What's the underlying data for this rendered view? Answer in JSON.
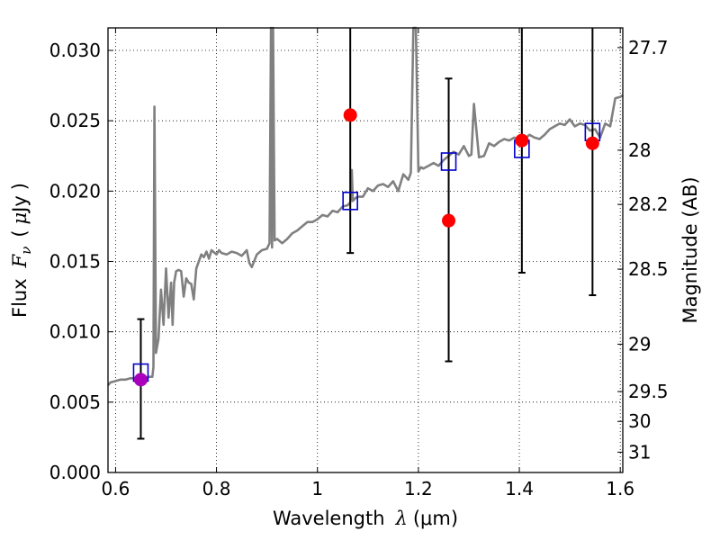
{
  "chart_data": {
    "type": "scatter",
    "title": "",
    "xlabel": {
      "text": "Wavelength",
      "symbol": "λ",
      "units": "(μm)"
    },
    "ylabel": {
      "text": "Flux",
      "symbol": "F",
      "subscript": "ν",
      "units_open": "(",
      "units_mu": "μ",
      "units_rest": "Jy",
      "units_close": ")"
    },
    "y2label": "Magnitude (AB)",
    "xlim": [
      0.585,
      1.605
    ],
    "ylim": [
      0.0,
      0.0316
    ],
    "xticks": [
      {
        "value": 0.6,
        "label": "0.6"
      },
      {
        "value": 0.8,
        "label": "0.8"
      },
      {
        "value": 1.0,
        "label": "1"
      },
      {
        "value": 1.2,
        "label": "1.2"
      },
      {
        "value": 1.4,
        "label": "1.4"
      },
      {
        "value": 1.6,
        "label": "1.6"
      }
    ],
    "yticks": [
      {
        "value": 0.0,
        "label": "0.000"
      },
      {
        "value": 0.005,
        "label": "0.005"
      },
      {
        "value": 0.01,
        "label": "0.010"
      },
      {
        "value": 0.015,
        "label": "0.015"
      },
      {
        "value": 0.02,
        "label": "0.020"
      },
      {
        "value": 0.025,
        "label": "0.025"
      },
      {
        "value": 0.03,
        "label": "0.030"
      }
    ],
    "y2ticks": [
      {
        "value": 27.7,
        "label": "27.7"
      },
      {
        "value": 28.0,
        "label": "28"
      },
      {
        "value": 28.2,
        "label": "28.2"
      },
      {
        "value": 28.5,
        "label": "28.5"
      },
      {
        "value": 29.0,
        "label": "29"
      },
      {
        "value": 29.5,
        "label": "29.5"
      },
      {
        "value": 30.0,
        "label": "30"
      },
      {
        "value": 31.0,
        "label": "31"
      }
    ],
    "grid": true,
    "colors": {
      "spectrum": "#808080",
      "observed": "#ff0000",
      "observed_first": "#aa00bb",
      "model": "#0000cc",
      "errorbar": "#000000"
    },
    "spectrum": {
      "x": [
        0.585,
        0.59,
        0.6,
        0.61,
        0.62,
        0.63,
        0.64,
        0.65,
        0.66,
        0.665,
        0.67,
        0.673,
        0.675,
        0.677,
        0.68,
        0.685,
        0.69,
        0.695,
        0.7,
        0.705,
        0.71,
        0.713,
        0.716,
        0.72,
        0.725,
        0.73,
        0.735,
        0.74,
        0.745,
        0.75,
        0.755,
        0.76,
        0.765,
        0.77,
        0.775,
        0.78,
        0.785,
        0.79,
        0.8,
        0.805,
        0.81,
        0.82,
        0.83,
        0.84,
        0.85,
        0.86,
        0.865,
        0.87,
        0.88,
        0.89,
        0.9,
        0.905,
        0.908,
        0.91,
        0.912,
        0.915,
        0.92,
        0.93,
        0.94,
        0.95,
        0.96,
        0.97,
        0.98,
        0.99,
        1.0,
        1.01,
        1.02,
        1.03,
        1.04,
        1.05,
        1.06,
        1.065,
        1.068,
        1.07,
        1.075,
        1.08,
        1.09,
        1.1,
        1.11,
        1.12,
        1.13,
        1.14,
        1.15,
        1.16,
        1.17,
        1.18,
        1.185,
        1.19,
        1.195,
        1.2,
        1.205,
        1.21,
        1.22,
        1.23,
        1.24,
        1.25,
        1.26,
        1.27,
        1.28,
        1.29,
        1.3,
        1.305,
        1.31,
        1.32,
        1.33,
        1.34,
        1.35,
        1.36,
        1.37,
        1.38,
        1.39,
        1.4,
        1.41,
        1.42,
        1.43,
        1.44,
        1.45,
        1.46,
        1.47,
        1.48,
        1.49,
        1.5,
        1.51,
        1.52,
        1.53,
        1.54,
        1.55,
        1.56,
        1.57,
        1.58,
        1.59,
        1.6,
        1.605
      ],
      "y": [
        0.0062,
        0.0064,
        0.0065,
        0.0066,
        0.0066,
        0.0067,
        0.0067,
        0.0066,
        0.0067,
        0.0068,
        0.0068,
        0.0068,
        0.0075,
        0.026,
        0.0085,
        0.0095,
        0.013,
        0.0105,
        0.0145,
        0.011,
        0.0135,
        0.0105,
        0.0135,
        0.0143,
        0.0144,
        0.0143,
        0.0125,
        0.0138,
        0.0135,
        0.0134,
        0.0123,
        0.0145,
        0.015,
        0.0155,
        0.0153,
        0.0157,
        0.0152,
        0.0158,
        0.0155,
        0.0158,
        0.0156,
        0.0155,
        0.0157,
        0.0156,
        0.0154,
        0.0158,
        0.0149,
        0.0146,
        0.0155,
        0.0158,
        0.0159,
        0.0163,
        0.0316,
        0.016,
        0.0316,
        0.0165,
        0.0166,
        0.0163,
        0.0166,
        0.017,
        0.0172,
        0.0175,
        0.0178,
        0.0178,
        0.018,
        0.0183,
        0.0182,
        0.0186,
        0.0185,
        0.0189,
        0.019,
        0.0192,
        0.0215,
        0.0193,
        0.0195,
        0.0196,
        0.0196,
        0.0202,
        0.02,
        0.0204,
        0.0205,
        0.0203,
        0.0207,
        0.02,
        0.0212,
        0.0208,
        0.0213,
        0.0316,
        0.0316,
        0.0214,
        0.0217,
        0.0216,
        0.0218,
        0.022,
        0.0218,
        0.0222,
        0.0225,
        0.0228,
        0.0226,
        0.0232,
        0.0225,
        0.0226,
        0.0262,
        0.0224,
        0.0225,
        0.0234,
        0.0232,
        0.0235,
        0.0237,
        0.0236,
        0.0238,
        0.0236,
        0.0237,
        0.024,
        0.0238,
        0.0237,
        0.024,
        0.0244,
        0.0246,
        0.0248,
        0.0247,
        0.0251,
        0.0246,
        0.0248,
        0.0247,
        0.0243,
        0.0244,
        0.0238,
        0.0248,
        0.0246,
        0.0266,
        0.0267,
        0.0268
      ]
    },
    "observed": [
      {
        "x": 0.65,
        "y": 0.0066,
        "yerr_low": 0.0024,
        "yerr_high": 0.0109
      },
      {
        "x": 1.065,
        "y": 0.0254,
        "yerr_low": 0.0156,
        "yerr_high": 0.0316
      },
      {
        "x": 1.26,
        "y": 0.0179,
        "yerr_low": 0.0079,
        "yerr_high": 0.028
      },
      {
        "x": 1.405,
        "y": 0.0236,
        "yerr_low": 0.0142,
        "yerr_high": 0.0316
      },
      {
        "x": 1.545,
        "y": 0.0234,
        "yerr_low": 0.0126,
        "yerr_high": 0.0316
      }
    ],
    "model": [
      {
        "x": 0.65,
        "y": 0.0071
      },
      {
        "x": 1.065,
        "y": 0.0193
      },
      {
        "x": 1.26,
        "y": 0.0221
      },
      {
        "x": 1.405,
        "y": 0.023
      },
      {
        "x": 1.545,
        "y": 0.0242
      }
    ]
  }
}
